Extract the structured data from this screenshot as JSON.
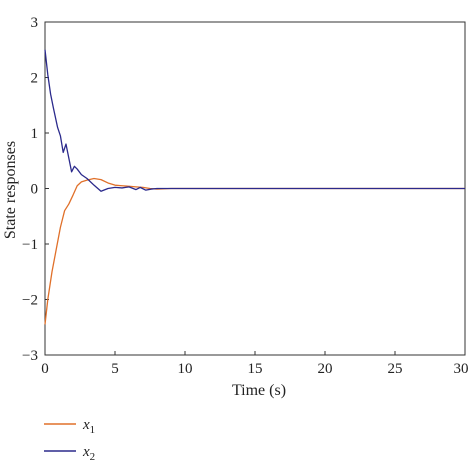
{
  "chart_data": {
    "type": "line",
    "title": "",
    "xlabel": "Time (s)",
    "ylabel": "State responses",
    "xlim": [
      0,
      30
    ],
    "ylim": [
      -3,
      3
    ],
    "xticks": [
      0,
      5,
      10,
      15,
      20,
      25,
      30
    ],
    "yticks": [
      -3,
      -2,
      -1,
      0,
      1,
      2,
      3
    ],
    "xtick_labels": [
      "0",
      "5",
      "10",
      "15",
      "20",
      "25",
      "30"
    ],
    "ytick_labels": [
      "−3",
      "−2",
      "−1",
      "0",
      "1",
      "2",
      "3"
    ],
    "grid": false,
    "legend_position": "bottom-left",
    "series": [
      {
        "name": "x",
        "subscript": "1",
        "color": "#e0702a",
        "x": [
          0,
          0.2,
          0.5,
          0.8,
          1.1,
          1.4,
          1.7,
          2.0,
          2.3,
          2.6,
          3.0,
          3.5,
          4.0,
          4.5,
          5.0,
          5.5,
          6.0,
          6.5,
          7.0,
          7.5,
          8.0,
          9.0,
          10.0,
          12.0,
          15.0,
          20.0,
          25.0,
          30.0
        ],
        "values": [
          -2.45,
          -2.0,
          -1.5,
          -1.1,
          -0.7,
          -0.4,
          -0.28,
          -0.12,
          0.05,
          0.12,
          0.15,
          0.18,
          0.16,
          0.1,
          0.06,
          0.05,
          0.04,
          0.03,
          0.02,
          0.0,
          -0.01,
          0.0,
          0.0,
          0.0,
          0.0,
          0.0,
          0.0,
          0.0
        ]
      },
      {
        "name": "x",
        "subscript": "2",
        "color": "#2b2a8c",
        "x": [
          0,
          0.2,
          0.4,
          0.6,
          0.9,
          1.1,
          1.3,
          1.5,
          1.7,
          1.9,
          2.1,
          2.3,
          2.6,
          3.0,
          3.5,
          4.0,
          4.5,
          5.0,
          5.5,
          6.0,
          6.5,
          6.8,
          7.2,
          7.6,
          8.0,
          9.0,
          10.0,
          12.0,
          15.0,
          20.0,
          25.0,
          30.0
        ],
        "values": [
          2.5,
          2.05,
          1.7,
          1.45,
          1.1,
          0.95,
          0.65,
          0.8,
          0.55,
          0.3,
          0.4,
          0.35,
          0.25,
          0.18,
          0.06,
          -0.05,
          0.0,
          0.02,
          0.01,
          0.03,
          -0.02,
          0.02,
          -0.03,
          -0.01,
          0.0,
          0.0,
          0.0,
          0.0,
          0.0,
          0.0,
          0.0,
          0.0
        ]
      }
    ]
  }
}
